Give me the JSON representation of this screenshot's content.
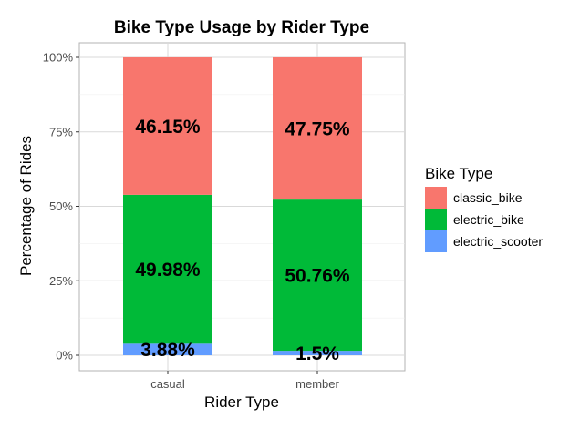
{
  "chart_data": {
    "type": "bar",
    "stacked": true,
    "title": "Bike Type Usage by Rider Type",
    "xlabel": "Rider Type",
    "ylabel": "Percentage of Rides",
    "categories": [
      "casual",
      "member"
    ],
    "ylim": [
      0,
      1
    ],
    "yticks": [
      {
        "value": 0,
        "label": "0%"
      },
      {
        "value": 0.25,
        "label": "25%"
      },
      {
        "value": 0.5,
        "label": "50%"
      },
      {
        "value": 0.75,
        "label": "75%"
      },
      {
        "value": 1,
        "label": "100%"
      }
    ],
    "series": [
      {
        "name": "electric_scooter",
        "color": "#619cff",
        "values": [
          0.0388,
          0.015
        ],
        "labels": [
          "3.88%",
          "1.5%"
        ]
      },
      {
        "name": "electric_bike",
        "color": "#00ba38",
        "values": [
          0.4998,
          0.5076
        ],
        "labels": [
          "49.98%",
          "50.76%"
        ]
      },
      {
        "name": "classic_bike",
        "color": "#f8766d",
        "values": [
          0.4615,
          0.4775
        ],
        "labels": [
          "46.15%",
          "47.75%"
        ]
      }
    ],
    "legend": {
      "title": "Bike Type",
      "position": "right",
      "order": [
        "classic_bike",
        "electric_bike",
        "electric_scooter"
      ]
    },
    "grid": true
  }
}
